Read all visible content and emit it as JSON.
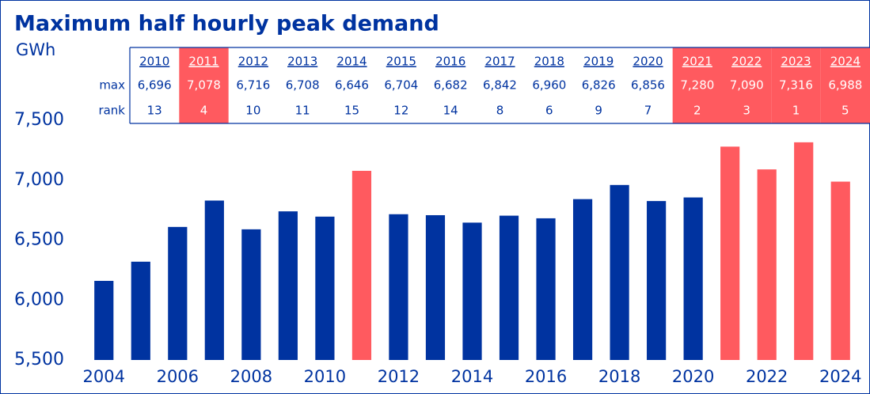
{
  "chart_data": {
    "type": "bar",
    "title": "Maximum half hourly peak demand",
    "y_label": "GWh",
    "x": [
      2004,
      2005,
      2006,
      2007,
      2008,
      2009,
      2010,
      2011,
      2012,
      2013,
      2014,
      2015,
      2016,
      2017,
      2018,
      2019,
      2020,
      2021,
      2022,
      2023,
      2024
    ],
    "values": [
      6160,
      6320,
      6610,
      6830,
      6590,
      6740,
      6696,
      7078,
      6716,
      6708,
      6646,
      6704,
      6682,
      6842,
      6960,
      6826,
      6856,
      7280,
      7090,
      7316,
      6988
    ],
    "colors": [
      "#0033a0",
      "#0033a0",
      "#0033a0",
      "#0033a0",
      "#0033a0",
      "#0033a0",
      "#0033a0",
      "#ff5a5f",
      "#0033a0",
      "#0033a0",
      "#0033a0",
      "#0033a0",
      "#0033a0",
      "#0033a0",
      "#0033a0",
      "#0033a0",
      "#0033a0",
      "#ff5a5f",
      "#ff5a5f",
      "#ff5a5f",
      "#ff5a5f"
    ],
    "xlim": [
      2003.5,
      2024.5
    ],
    "xticks": [
      2004,
      2006,
      2008,
      2010,
      2012,
      2014,
      2016,
      2018,
      2020,
      2022,
      2024
    ],
    "ylim": [
      5500,
      7500
    ],
    "yticks": [
      {
        "value": 5500,
        "label": "5,500"
      },
      {
        "value": 6000,
        "label": "6,000"
      },
      {
        "value": 6500,
        "label": "6,500"
      },
      {
        "value": 7000,
        "label": "7,000"
      },
      {
        "value": 7500,
        "label": "7,500"
      }
    ],
    "table": {
      "row_labels": [
        "max",
        "rank"
      ],
      "years": [
        "2010",
        "2011",
        "2012",
        "2013",
        "2014",
        "2015",
        "2016",
        "2017",
        "2018",
        "2019",
        "2020",
        "2021",
        "2022",
        "2023",
        "2024"
      ],
      "max": [
        "6,696",
        "7,078",
        "6,716",
        "6,708",
        "6,646",
        "6,704",
        "6,682",
        "6,842",
        "6,960",
        "6,826",
        "6,856",
        "7,280",
        "7,090",
        "7,316",
        "6,988"
      ],
      "rank": [
        13,
        4,
        10,
        11,
        15,
        12,
        14,
        8,
        6,
        9,
        7,
        2,
        3,
        1,
        5
      ],
      "highlight": [
        false,
        true,
        false,
        false,
        false,
        false,
        false,
        false,
        false,
        false,
        false,
        true,
        true,
        true,
        true
      ],
      "highlight_color": "#ff5a5f"
    }
  }
}
